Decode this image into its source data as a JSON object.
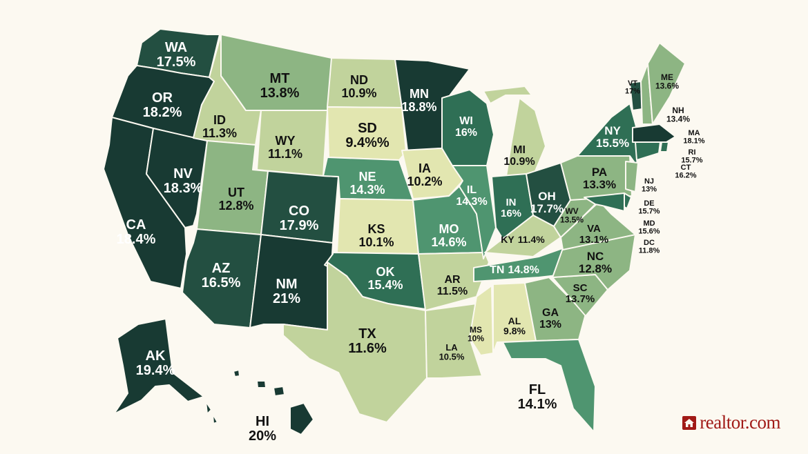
{
  "brand": {
    "name": "realtor.com",
    "color": "#a11a17",
    "icon": "house-icon"
  },
  "palette": {
    "background": "#fcf9f1",
    "bins": [
      {
        "min": 0,
        "max": 10.5,
        "color": "#e2e6b0"
      },
      {
        "min": 10.5,
        "max": 12,
        "color": "#c1d39c"
      },
      {
        "min": 12,
        "max": 14,
        "color": "#8db583"
      },
      {
        "min": 14,
        "max": 15,
        "color": "#4f9570"
      },
      {
        "min": 15,
        "max": 16.5,
        "color": "#2f6f55"
      },
      {
        "min": 16.5,
        "max": 18,
        "color": "#234f41"
      },
      {
        "min": 18,
        "max": 99,
        "color": "#183a33"
      }
    ]
  },
  "states": [
    {
      "code": "WA",
      "value": "17.5%"
    },
    {
      "code": "OR",
      "value": "18.2%"
    },
    {
      "code": "CA",
      "value": "18.4%"
    },
    {
      "code": "NV",
      "value": "18.3%"
    },
    {
      "code": "ID",
      "value": "11.3%"
    },
    {
      "code": "MT",
      "value": "13.8%"
    },
    {
      "code": "WY",
      "value": "11.1%"
    },
    {
      "code": "UT",
      "value": "12.8%"
    },
    {
      "code": "CO",
      "value": "17.9%"
    },
    {
      "code": "AZ",
      "value": "16.5%"
    },
    {
      "code": "NM",
      "value": "21%"
    },
    {
      "code": "ND",
      "value": "10.9%"
    },
    {
      "code": "SD",
      "value": "9.4%%"
    },
    {
      "code": "NE",
      "value": "14.3%"
    },
    {
      "code": "KS",
      "value": "10.1%"
    },
    {
      "code": "OK",
      "value": "15.4%"
    },
    {
      "code": "TX",
      "value": "11.6%"
    },
    {
      "code": "MN",
      "value": "18.8%"
    },
    {
      "code": "IA",
      "value": "10.2%"
    },
    {
      "code": "MO",
      "value": "14.6%"
    },
    {
      "code": "AR",
      "value": "11.5%"
    },
    {
      "code": "LA",
      "value": "10.5%"
    },
    {
      "code": "WI",
      "value": "16%"
    },
    {
      "code": "IL",
      "value": "14.3%"
    },
    {
      "code": "MI",
      "value": "10.9%"
    },
    {
      "code": "IN",
      "value": "16%"
    },
    {
      "code": "OH",
      "value": "17.7%"
    },
    {
      "code": "KY",
      "value": "11.4%"
    },
    {
      "code": "TN",
      "value": "14.8%"
    },
    {
      "code": "MS",
      "value": "10%"
    },
    {
      "code": "AL",
      "value": "9.8%"
    },
    {
      "code": "GA",
      "value": "13%"
    },
    {
      "code": "FL",
      "value": "14.1%"
    },
    {
      "code": "SC",
      "value": "13.7%"
    },
    {
      "code": "NC",
      "value": "12.8%"
    },
    {
      "code": "VA",
      "value": "13.1%"
    },
    {
      "code": "WV",
      "value": "13.5%"
    },
    {
      "code": "PA",
      "value": "13.3%"
    },
    {
      "code": "NY",
      "value": "15.5%"
    },
    {
      "code": "VT",
      "value": "17%"
    },
    {
      "code": "NH",
      "value": "13.4%"
    },
    {
      "code": "ME",
      "value": "13.6%"
    },
    {
      "code": "MA",
      "value": "18.1%"
    },
    {
      "code": "RI",
      "value": "15.7%"
    },
    {
      "code": "CT",
      "value": "16.2%"
    },
    {
      "code": "NJ",
      "value": "13%"
    },
    {
      "code": "DE",
      "value": "15.7%"
    },
    {
      "code": "MD",
      "value": "15.6%"
    },
    {
      "code": "DC",
      "value": "11.8%"
    },
    {
      "code": "AK",
      "value": "19.4%"
    },
    {
      "code": "HI",
      "value": "20%"
    }
  ]
}
